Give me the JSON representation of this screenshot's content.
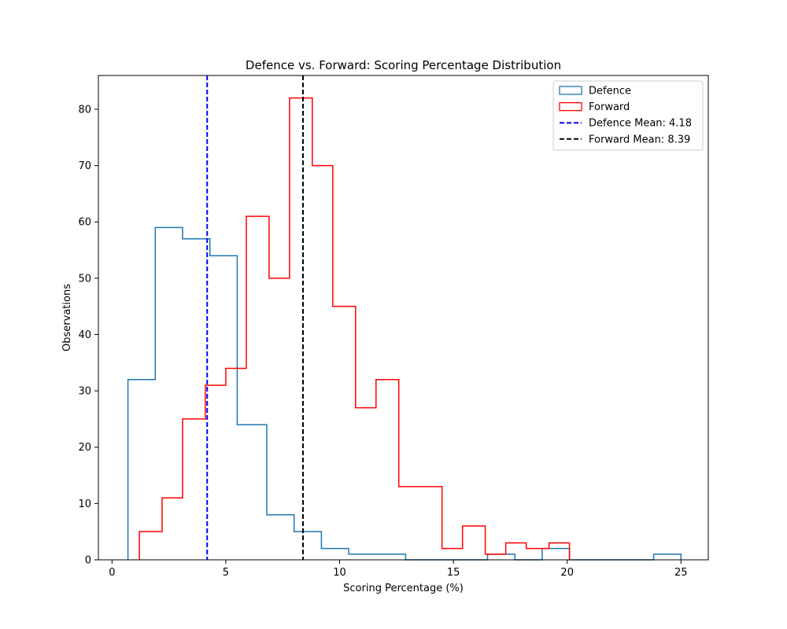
{
  "chart_data": {
    "type": "histogram",
    "title": "Defence vs. Forward: Scoring Percentage Distribution",
    "xlabel": "Scoring Percentage (%)",
    "ylabel": "Observations",
    "xlim": [
      -0.6,
      26.2
    ],
    "ylim": [
      0,
      86
    ],
    "xticks": [
      0,
      5,
      10,
      15,
      20,
      25
    ],
    "yticks": [
      0,
      10,
      20,
      30,
      40,
      50,
      60,
      70,
      80
    ],
    "grid": false,
    "legend_position": "top-right",
    "series": [
      {
        "name": "Defence",
        "style": "step",
        "color": "#1f77b4",
        "bins": [
          {
            "x0": 0.7,
            "x1": 1.9,
            "count": 32
          },
          {
            "x0": 1.9,
            "x1": 3.1,
            "count": 59
          },
          {
            "x0": 3.1,
            "x1": 4.3,
            "count": 57
          },
          {
            "x0": 4.3,
            "x1": 5.5,
            "count": 54
          },
          {
            "x0": 5.5,
            "x1": 6.8,
            "count": 24
          },
          {
            "x0": 6.8,
            "x1": 8.0,
            "count": 8
          },
          {
            "x0": 8.0,
            "x1": 9.2,
            "count": 5
          },
          {
            "x0": 9.2,
            "x1": 10.4,
            "count": 2
          },
          {
            "x0": 10.4,
            "x1": 11.6,
            "count": 1
          },
          {
            "x0": 11.6,
            "x1": 12.9,
            "count": 1
          },
          {
            "x0": 12.9,
            "x1": 14.1,
            "count": 0
          },
          {
            "x0": 14.1,
            "x1": 15.3,
            "count": 0
          },
          {
            "x0": 15.3,
            "x1": 16.5,
            "count": 0
          },
          {
            "x0": 16.5,
            "x1": 17.7,
            "count": 1
          },
          {
            "x0": 17.7,
            "x1": 18.9,
            "count": 0
          },
          {
            "x0": 18.9,
            "x1": 20.1,
            "count": 2
          },
          {
            "x0": 20.1,
            "x1": 21.4,
            "count": 0
          },
          {
            "x0": 21.4,
            "x1": 22.6,
            "count": 0
          },
          {
            "x0": 22.6,
            "x1": 23.8,
            "count": 0
          },
          {
            "x0": 23.8,
            "x1": 25.0,
            "count": 1
          }
        ]
      },
      {
        "name": "Forward",
        "style": "step",
        "color": "#ff0000",
        "bins": [
          {
            "x0": 1.2,
            "x1": 2.2,
            "count": 5
          },
          {
            "x0": 2.2,
            "x1": 3.1,
            "count": 11
          },
          {
            "x0": 3.1,
            "x1": 4.1,
            "count": 25
          },
          {
            "x0": 4.1,
            "x1": 5.0,
            "count": 31
          },
          {
            "x0": 5.0,
            "x1": 5.9,
            "count": 34
          },
          {
            "x0": 5.9,
            "x1": 6.9,
            "count": 61
          },
          {
            "x0": 6.9,
            "x1": 7.8,
            "count": 50
          },
          {
            "x0": 7.8,
            "x1": 8.8,
            "count": 82
          },
          {
            "x0": 8.8,
            "x1": 9.7,
            "count": 70
          },
          {
            "x0": 9.7,
            "x1": 10.7,
            "count": 45
          },
          {
            "x0": 10.7,
            "x1": 11.6,
            "count": 27
          },
          {
            "x0": 11.6,
            "x1": 12.6,
            "count": 32
          },
          {
            "x0": 12.6,
            "x1": 13.5,
            "count": 13
          },
          {
            "x0": 13.5,
            "x1": 14.5,
            "count": 13
          },
          {
            "x0": 14.5,
            "x1": 15.4,
            "count": 2
          },
          {
            "x0": 15.4,
            "x1": 16.4,
            "count": 6
          },
          {
            "x0": 16.4,
            "x1": 17.3,
            "count": 1
          },
          {
            "x0": 17.3,
            "x1": 18.2,
            "count": 3
          },
          {
            "x0": 18.2,
            "x1": 19.2,
            "count": 2
          },
          {
            "x0": 19.2,
            "x1": 20.1,
            "count": 3
          }
        ]
      }
    ],
    "vlines": [
      {
        "label": "Defence Mean: 4.18",
        "x": 4.18,
        "color": "#0000ff",
        "style": "dashed"
      },
      {
        "label": "Forward Mean: 8.39",
        "x": 8.39,
        "color": "#000000",
        "style": "dashed"
      }
    ],
    "legend": [
      {
        "label": "Defence",
        "kind": "patch",
        "color": "#1f77b4"
      },
      {
        "label": "Forward",
        "kind": "patch",
        "color": "#ff0000"
      },
      {
        "label": "Defence Mean: 4.18",
        "kind": "dashed-line",
        "color": "#0000ff"
      },
      {
        "label": "Forward Mean: 8.39",
        "kind": "dashed-line",
        "color": "#000000"
      }
    ]
  }
}
